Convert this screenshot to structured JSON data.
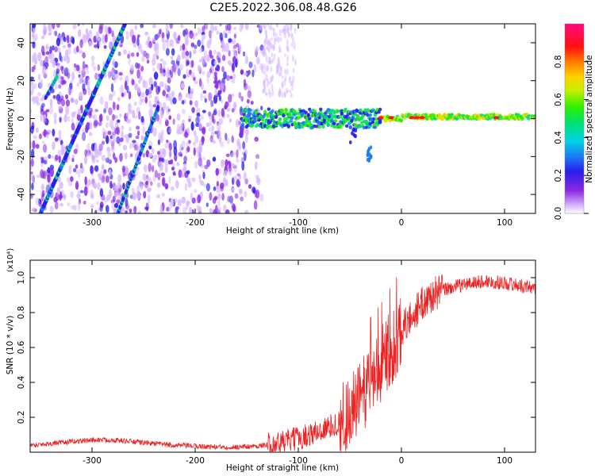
{
  "title": "C2E5.2022.306.08.48.G26",
  "colors": {
    "snr_line": "#ee2222",
    "axis": "#000000",
    "ticks": "#000000"
  },
  "chart_data": [
    {
      "type": "heatmap",
      "xlabel": "Height of straight line (km)",
      "ylabel": "Frequency (Hz)",
      "xlim": [
        -360,
        130
      ],
      "ylim": [
        -50,
        50
      ],
      "xticks": [
        -300,
        -200,
        -100,
        0,
        100
      ],
      "yticks": [
        -40,
        -20,
        0,
        20,
        40
      ],
      "colorbar": {
        "label": "Normalized spectral amplitude",
        "range": [
          0,
          1
        ],
        "ticks": [
          0.0,
          0.2,
          0.4,
          0.6,
          0.8
        ],
        "colormap": "rainbow (white→purple→blue→cyan→green→yellow→orange→red→magenta)"
      },
      "features": [
        {
          "name": "main carrier",
          "x_range": [
            -160,
            130
          ],
          "freq_hz": 0,
          "peak_amplitude": 0.85
        },
        {
          "name": "diagonal streak 1",
          "from": [
            -350,
            -50
          ],
          "to": [
            -268,
            50
          ]
        },
        {
          "name": "diagonal streak 2",
          "from": [
            -275,
            -50
          ],
          "to": [
            -235,
            7
          ]
        },
        {
          "name": "short streak",
          "from": [
            -345,
            12
          ],
          "to": [
            -335,
            22
          ]
        },
        {
          "name": "noise region",
          "x_range": [
            -360,
            -120
          ],
          "freq_range": [
            -50,
            50
          ]
        }
      ]
    },
    {
      "type": "line",
      "xlabel": "Height of straight line (km)",
      "ylabel": "SNR (10 * v/v)",
      "y_scale_label": "(x10⁴)",
      "xlim": [
        -360,
        130
      ],
      "ylim": [
        0,
        1.1
      ],
      "xticks": [
        -300,
        -200,
        -100,
        0,
        100
      ],
      "yticks": [
        0.2,
        0.4,
        0.6,
        0.8,
        1.0
      ],
      "series": [
        {
          "x": [
            -360,
            -340,
            -320,
            -300,
            -280,
            -260,
            -240,
            -220,
            -200,
            -180,
            -160,
            -140,
            -120,
            -100,
            -80,
            -60,
            -40,
            -30,
            -20,
            -10,
            0,
            10,
            20,
            30,
            40,
            60,
            80,
            100,
            120,
            130
          ],
          "values": [
            0.04,
            0.05,
            0.06,
            0.07,
            0.07,
            0.06,
            0.05,
            0.04,
            0.035,
            0.03,
            0.03,
            0.035,
            0.05,
            0.08,
            0.12,
            0.17,
            0.3,
            0.42,
            0.5,
            0.6,
            0.7,
            0.78,
            0.85,
            0.9,
            0.93,
            0.96,
            0.98,
            0.97,
            0.95,
            0.94
          ]
        }
      ]
    }
  ]
}
